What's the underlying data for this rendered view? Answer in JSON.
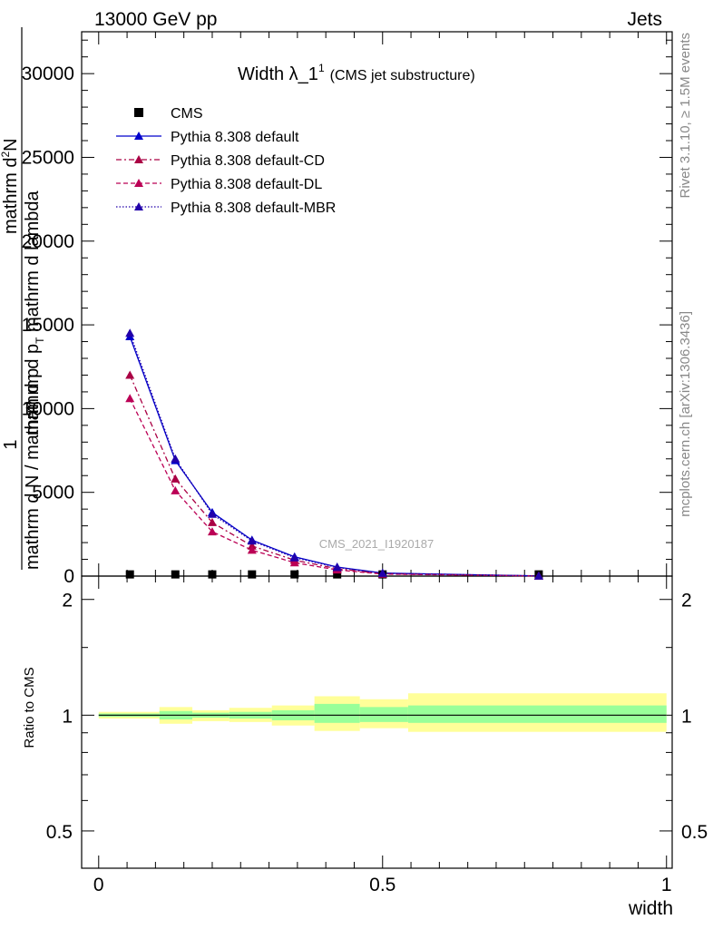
{
  "header": {
    "left": "13000 GeV pp",
    "right": "Jets"
  },
  "colors": {
    "cms": "#000000",
    "default": "#0000cc",
    "cd": "#aa0044",
    "dl": "#bb0055",
    "mbr": "#2200aa",
    "band_outer": "#ffff99",
    "band_inner": "#99ff99",
    "ref_label": "#aaaaaa"
  },
  "chart_data": [
    {
      "type": "line",
      "title": "Width λ_1",
      "title_superscript": "1",
      "subtitle": "(CMS jet substructure)",
      "ylabel_parts": {
        "frac_top": "1",
        "frac_bottom": "mathrm d N / mathrm d p",
        "dn": "mathrm d",
        "dn_sup": "2",
        "dn_n": "N",
        "dpt_prefix": "mathrm d p",
        "dpt_sub": "T",
        "dpt_suffix": " mathrm d lambda"
      },
      "ref_label": "CMS_2021_I1920187",
      "side_label_top": "Rivet 3.1.10, ≥ 1.5M events",
      "side_label_bottom": "mcplots.cern.ch [arXiv:1306.3436]",
      "xlim": [
        -0.03,
        1.01
      ],
      "ylim": [
        0,
        32500
      ],
      "yticks": [
        0,
        5000,
        10000,
        15000,
        20000,
        25000,
        30000
      ],
      "ytick_labels": [
        "0",
        "5000",
        "10000",
        "15000",
        "20000",
        "25000",
        "30000"
      ],
      "legend_position": "top-left",
      "series": [
        {
          "name": "CMS",
          "style": "marker-square",
          "x": [
            0.055,
            0.135,
            0.2,
            0.27,
            0.345,
            0.42,
            0.5,
            0.775
          ],
          "y": [
            20,
            20,
            20,
            20,
            20,
            20,
            20,
            20
          ]
        },
        {
          "name": "Pythia 8.308 default",
          "style": "solid",
          "x": [
            0.055,
            0.135,
            0.2,
            0.27,
            0.345,
            0.42,
            0.5,
            0.775
          ],
          "y": [
            14300,
            6900,
            3800,
            2150,
            1150,
            540,
            180,
            10
          ]
        },
        {
          "name": "Pythia 8.308 default-CD",
          "style": "dashdot",
          "x": [
            0.055,
            0.135,
            0.2,
            0.27,
            0.345,
            0.42,
            0.5,
            0.775
          ],
          "y": [
            12000,
            5800,
            3200,
            1800,
            950,
            440,
            140,
            8
          ]
        },
        {
          "name": "Pythia 8.308 default-DL",
          "style": "dashed",
          "x": [
            0.055,
            0.135,
            0.2,
            0.27,
            0.345,
            0.42,
            0.5,
            0.775
          ],
          "y": [
            10600,
            5100,
            2650,
            1550,
            800,
            370,
            120,
            6
          ]
        },
        {
          "name": "Pythia 8.308 default-MBR",
          "style": "dotted",
          "x": [
            0.055,
            0.135,
            0.2,
            0.27,
            0.345,
            0.42,
            0.5,
            0.775
          ],
          "y": [
            14500,
            7000,
            3700,
            2100,
            1100,
            520,
            170,
            9
          ]
        }
      ]
    },
    {
      "type": "band",
      "ylabel": "Ratio to CMS",
      "xlabel": "width",
      "xlim": [
        -0.03,
        1.01
      ],
      "ylim": [
        0.4,
        2.3
      ],
      "log_y": true,
      "yticks": [
        0.5,
        1,
        2
      ],
      "ytick_labels": [
        "0.5",
        "1",
        "2"
      ],
      "xticks": [
        0,
        0.5,
        1
      ],
      "xtick_labels": [
        "0",
        "0.5",
        "1"
      ],
      "bins": [
        {
          "lo": 0.0,
          "hi": 0.107,
          "inner": [
            0.99,
            1.01
          ],
          "outer": [
            0.98,
            1.02
          ]
        },
        {
          "lo": 0.107,
          "hi": 0.165,
          "inner": [
            0.975,
            1.025
          ],
          "outer": [
            0.95,
            1.05
          ]
        },
        {
          "lo": 0.165,
          "hi": 0.23,
          "inner": [
            0.985,
            1.015
          ],
          "outer": [
            0.965,
            1.03
          ]
        },
        {
          "lo": 0.23,
          "hi": 0.305,
          "inner": [
            0.98,
            1.02
          ],
          "outer": [
            0.96,
            1.045
          ]
        },
        {
          "lo": 0.305,
          "hi": 0.38,
          "inner": [
            0.97,
            1.03
          ],
          "outer": [
            0.94,
            1.06
          ]
        },
        {
          "lo": 0.38,
          "hi": 0.46,
          "inner": [
            0.955,
            1.07
          ],
          "outer": [
            0.91,
            1.12
          ]
        },
        {
          "lo": 0.46,
          "hi": 0.545,
          "inner": [
            0.96,
            1.05
          ],
          "outer": [
            0.925,
            1.1
          ]
        },
        {
          "lo": 0.545,
          "hi": 1.0,
          "inner": [
            0.955,
            1.06
          ],
          "outer": [
            0.905,
            1.14
          ]
        }
      ],
      "ratio_line": 1
    }
  ]
}
